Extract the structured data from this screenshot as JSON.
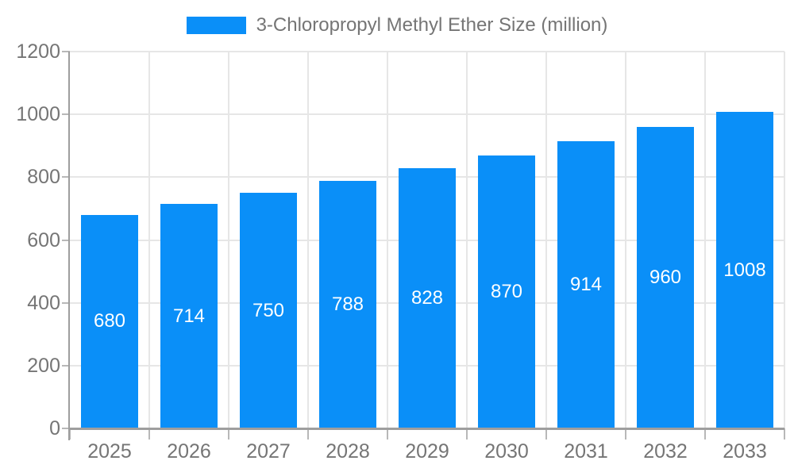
{
  "chart": {
    "colors": {
      "bar": "#0a8ff8",
      "grid": "#e6e6e6",
      "axis": "#9e9e9e",
      "tick": "#b8b8b8",
      "text": "#757575",
      "bar_label": "#ffffff",
      "background": "#ffffff"
    }
  },
  "chart_data": {
    "type": "bar",
    "title": "",
    "legend": "3-Chloropropyl Methyl Ether Size (million)",
    "legend_position": "top-center",
    "categories": [
      "2025",
      "2026",
      "2027",
      "2028",
      "2029",
      "2030",
      "2031",
      "2032",
      "2033"
    ],
    "values": [
      680,
      714,
      750,
      788,
      828,
      870,
      914,
      960,
      1008
    ],
    "xlabel": "",
    "ylabel": "",
    "ylim": [
      0,
      1200
    ],
    "yticks": [
      0,
      200,
      400,
      600,
      800,
      1000,
      1200
    ],
    "grid": true,
    "bar_value_labels": true,
    "bar_value_label_position": "center"
  }
}
